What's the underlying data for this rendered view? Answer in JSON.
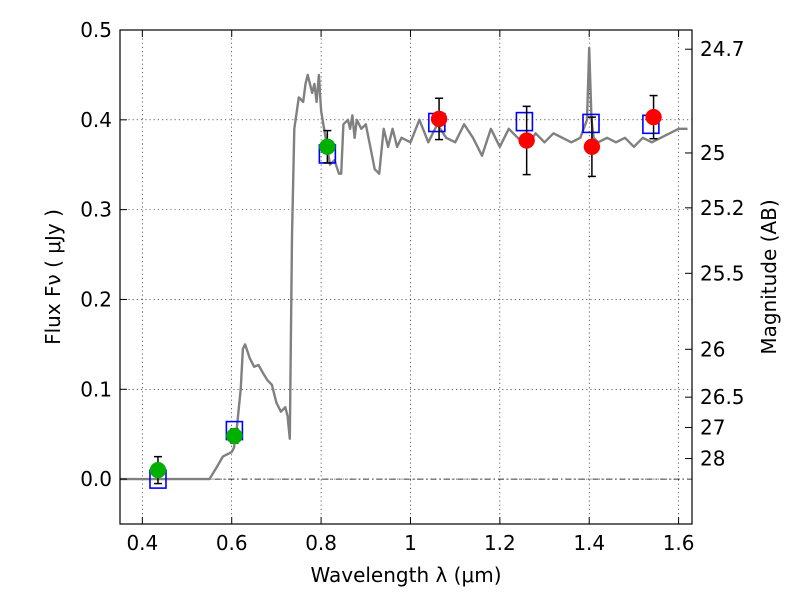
{
  "chart_data": {
    "type": "scatter",
    "xlabel": "Wavelength  λ (μm)",
    "ylabel": "Flux  Fν  ( μJy )",
    "y2label": "Magnitude (AB)",
    "xlim": [
      0.35,
      1.63
    ],
    "ylim": [
      -0.05,
      0.5
    ],
    "grid": true,
    "x_ticks": [
      {
        "v": 0.4,
        "label": "0.4"
      },
      {
        "v": 0.6,
        "label": "0.6"
      },
      {
        "v": 0.8,
        "label": "0.8"
      },
      {
        "v": 1.0,
        "label": "1"
      },
      {
        "v": 1.2,
        "label": "1.2"
      },
      {
        "v": 1.4,
        "label": "1.4"
      },
      {
        "v": 1.6,
        "label": "1.6"
      }
    ],
    "y_ticks": [
      {
        "v": 0.0,
        "label": "0.0"
      },
      {
        "v": 0.1,
        "label": "0.1"
      },
      {
        "v": 0.2,
        "label": "0.2"
      },
      {
        "v": 0.3,
        "label": "0.3"
      },
      {
        "v": 0.4,
        "label": "0.4"
      },
      {
        "v": 0.5,
        "label": "0.5"
      }
    ],
    "mag_ticks": [
      {
        "flux": 0.4786,
        "label": "24.7"
      },
      {
        "flux": 0.3631,
        "label": "25"
      },
      {
        "flux": 0.302,
        "label": "25.2"
      },
      {
        "flux": 0.2291,
        "label": "25.5"
      },
      {
        "flux": 0.1445,
        "label": "26"
      },
      {
        "flux": 0.0912,
        "label": "26.5"
      },
      {
        "flux": 0.0575,
        "label": "27"
      },
      {
        "flux": 0.0229,
        "label": "28"
      }
    ],
    "series": [
      {
        "kind": "model_spectrum",
        "color": "#808080",
        "x": [
          0.35,
          0.55,
          0.565,
          0.58,
          0.6,
          0.605,
          0.612,
          0.62,
          0.625,
          0.63,
          0.64,
          0.65,
          0.66,
          0.67,
          0.68,
          0.69,
          0.7,
          0.71,
          0.72,
          0.725,
          0.73,
          0.735,
          0.74,
          0.75,
          0.76,
          0.765,
          0.77,
          0.78,
          0.785,
          0.79,
          0.795,
          0.8,
          0.81,
          0.82,
          0.83,
          0.84,
          0.845,
          0.85,
          0.86,
          0.865,
          0.87,
          0.875,
          0.88,
          0.89,
          0.9,
          0.91,
          0.92,
          0.93,
          0.94,
          0.95,
          0.96,
          0.97,
          0.98,
          1.0,
          1.02,
          1.04,
          1.06,
          1.08,
          1.1,
          1.12,
          1.14,
          1.16,
          1.18,
          1.2,
          1.22,
          1.24,
          1.26,
          1.28,
          1.3,
          1.32,
          1.34,
          1.36,
          1.38,
          1.395,
          1.4,
          1.405,
          1.41,
          1.42,
          1.44,
          1.46,
          1.48,
          1.5,
          1.52,
          1.54,
          1.56,
          1.58,
          1.6,
          1.62
        ],
        "y": [
          0.0,
          0.0,
          0.012,
          0.025,
          0.03,
          0.035,
          0.06,
          0.1,
          0.145,
          0.15,
          0.135,
          0.125,
          0.127,
          0.118,
          0.11,
          0.105,
          0.085,
          0.075,
          0.08,
          0.07,
          0.045,
          0.27,
          0.39,
          0.425,
          0.42,
          0.44,
          0.45,
          0.43,
          0.44,
          0.42,
          0.45,
          0.41,
          0.38,
          0.35,
          0.355,
          0.34,
          0.34,
          0.395,
          0.4,
          0.39,
          0.405,
          0.38,
          0.4,
          0.39,
          0.395,
          0.37,
          0.345,
          0.34,
          0.39,
          0.37,
          0.39,
          0.37,
          0.38,
          0.375,
          0.4,
          0.375,
          0.395,
          0.38,
          0.375,
          0.395,
          0.38,
          0.36,
          0.39,
          0.37,
          0.39,
          0.38,
          0.37,
          0.385,
          0.375,
          0.385,
          0.38,
          0.375,
          0.38,
          0.4,
          0.48,
          0.4,
          0.38,
          0.375,
          0.38,
          0.375,
          0.38,
          0.37,
          0.38,
          0.375,
          0.38,
          0.385,
          0.39,
          0.39
        ]
      },
      {
        "kind": "model_photometry",
        "marker": "open-square",
        "color": "#0000ff",
        "x": [
          0.435,
          0.606,
          0.814,
          1.059,
          1.255,
          1.404,
          1.538
        ],
        "y": [
          0.0,
          0.054,
          0.362,
          0.397,
          0.398,
          0.396,
          0.395
        ]
      },
      {
        "kind": "observed_optical",
        "marker": "filled-circle",
        "color": "#00b000",
        "x": [
          0.435,
          0.606,
          0.814
        ],
        "y": [
          0.01,
          0.048,
          0.37
        ],
        "yerr": [
          0.015,
          0.008,
          0.018
        ]
      },
      {
        "kind": "observed_nir",
        "marker": "filled-circle",
        "color": "#ff0000",
        "x": [
          1.064,
          1.26,
          1.406,
          1.544
        ],
        "y": [
          0.401,
          0.377,
          0.37,
          0.403
        ],
        "yerr": [
          0.023,
          0.038,
          0.033,
          0.024
        ]
      }
    ]
  }
}
